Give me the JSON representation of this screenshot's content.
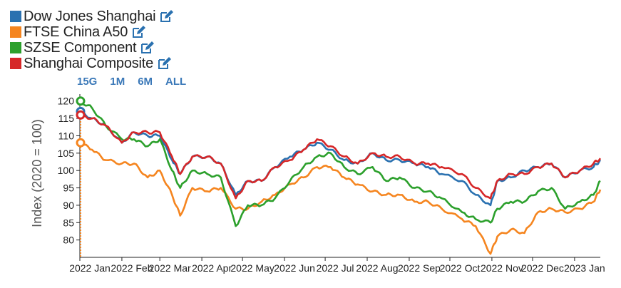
{
  "chart_data": {
    "type": "line",
    "ylabel": "Index (2020 = 100)",
    "ylim": [
      75,
      122
    ],
    "yticks": [
      80,
      85,
      90,
      95,
      100,
      105,
      110,
      115,
      120
    ],
    "xlim": [
      "2022-01-01",
      "2023-01-20"
    ],
    "xticks": [
      {
        "date": "2022-01-01",
        "label": "2022 Jan"
      },
      {
        "date": "2022-02-01",
        "label": "2022 Feb"
      },
      {
        "date": "2022-03-01",
        "label": "2022 Mar"
      },
      {
        "date": "2022-04-01",
        "label": "2022 Apr"
      },
      {
        "date": "2022-05-01",
        "label": "2022 May"
      },
      {
        "date": "2022-06-01",
        "label": "2022 Jun"
      },
      {
        "date": "2022-07-01",
        "label": "2022 Jul"
      },
      {
        "date": "2022-08-01",
        "label": "2022 Aug"
      },
      {
        "date": "2022-09-01",
        "label": "2022 Sep"
      },
      {
        "date": "2022-10-01",
        "label": "2022 Oct"
      },
      {
        "date": "2022-11-01",
        "label": "2022 Nov"
      },
      {
        "date": "2022-12-01",
        "label": "2022 Dec"
      },
      {
        "date": "2023-01-01",
        "label": "2023 Jan"
      }
    ],
    "x": [
      "2022-01-01",
      "2022-01-10",
      "2022-01-20",
      "2022-02-01",
      "2022-02-10",
      "2022-02-20",
      "2022-03-01",
      "2022-03-10",
      "2022-03-16",
      "2022-03-25",
      "2022-04-05",
      "2022-04-15",
      "2022-04-26",
      "2022-05-05",
      "2022-05-15",
      "2022-05-25",
      "2022-06-05",
      "2022-06-15",
      "2022-06-25",
      "2022-07-05",
      "2022-07-15",
      "2022-07-25",
      "2022-08-05",
      "2022-08-15",
      "2022-08-25",
      "2022-09-05",
      "2022-09-15",
      "2022-09-25",
      "2022-10-10",
      "2022-10-20",
      "2022-10-31",
      "2022-11-05",
      "2022-11-15",
      "2022-11-25",
      "2022-12-05",
      "2022-12-15",
      "2022-12-25",
      "2023-01-05",
      "2023-01-15",
      "2023-01-20"
    ],
    "series": [
      {
        "name": "Dow Jones Shanghai",
        "color": "#2a71b0",
        "values": [
          117,
          115,
          113,
          108,
          111,
          110,
          110,
          103,
          99,
          104,
          104,
          102,
          93,
          97,
          97,
          101,
          104,
          106,
          108,
          106,
          103,
          102,
          105,
          103,
          103,
          102,
          101,
          99,
          97,
          93,
          90,
          97,
          98,
          100,
          101,
          102,
          98,
          100,
          101,
          103
        ]
      },
      {
        "name": "FTSE China A50",
        "color": "#f5851f",
        "values": [
          108,
          106,
          103,
          102,
          102,
          98,
          100,
          93,
          87,
          95,
          94,
          95,
          89,
          89,
          91,
          93,
          96,
          98,
          101,
          101,
          98,
          96,
          94,
          93,
          93,
          91,
          91,
          89,
          86,
          84,
          76,
          81,
          83,
          82,
          88,
          89,
          88,
          89,
          91,
          94.5
        ]
      },
      {
        "name": "SZSE Component",
        "color": "#2ca02c",
        "values": [
          120,
          118,
          113,
          109,
          109,
          107,
          109,
          100,
          95,
          100,
          99,
          98,
          84,
          90,
          90,
          92,
          97,
          101,
          104,
          105,
          101,
          99,
          101,
          97,
          98,
          95,
          94,
          92,
          88,
          86,
          85,
          89,
          91,
          91,
          94,
          95,
          89,
          91,
          93,
          97
        ]
      },
      {
        "name": "Shanghai Composite",
        "color": "#d62728",
        "values": [
          116,
          115,
          113,
          108,
          111,
          111,
          111,
          104,
          99,
          104,
          104,
          102,
          92,
          97,
          97,
          101,
          103,
          106,
          109,
          107,
          104,
          102,
          105,
          104,
          104,
          102,
          102,
          101,
          99,
          95,
          92,
          97,
          99,
          99,
          101,
          102,
          98,
          100,
          102,
          103.5
        ]
      }
    ]
  },
  "legend": {
    "items": [
      {
        "label": "Dow Jones Shanghai",
        "color": "#2a71b0"
      },
      {
        "label": "FTSE China A50",
        "color": "#f5851f"
      },
      {
        "label": "SZSE Component",
        "color": "#2ca02c"
      },
      {
        "label": "Shanghai Composite",
        "color": "#d62728"
      }
    ],
    "edit_icon": "edit-icon"
  },
  "range_buttons": [
    "15G",
    "1M",
    "6M",
    "ALL"
  ]
}
